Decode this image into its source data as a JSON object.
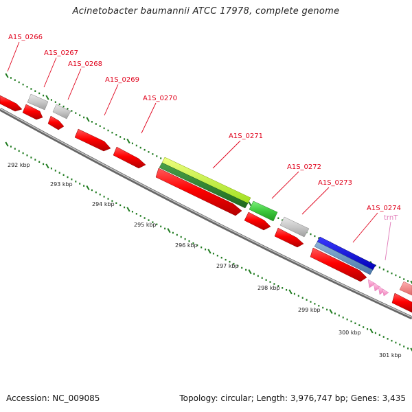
{
  "title": "Acinetobacter baumannii ATCC 17978, complete genome",
  "footer": {
    "accession": "Accession: NC_009085",
    "topology": "Topology: circular; Length: 3,976,747 bp; Genes: 3,435"
  },
  "colors": {
    "label": "#e0001a",
    "trna_label": "#e07ab8",
    "backbone": "#888888",
    "tick": "#1e7a1e"
  },
  "scale_ticks": [
    "292 kbp",
    "293 kbp",
    "294 kbp",
    "295 kbp",
    "296 kbp",
    "297 kbp",
    "298 kbp",
    "299 kbp",
    "300 kbp",
    "301 kbp"
  ],
  "features": [
    {
      "label": "A1S_0266",
      "color": "red"
    },
    {
      "label": "A1S_0267",
      "color": "grey"
    },
    {
      "label": "A1S_0268",
      "color": "grey"
    },
    {
      "label": "A1S_0269",
      "color": "red"
    },
    {
      "label": "A1S_0270",
      "color": "red"
    },
    {
      "label": "A1S_0271",
      "color": "lime"
    },
    {
      "label": "A1S_0272",
      "color": "green"
    },
    {
      "label": "A1S_0273",
      "color": "grey"
    },
    {
      "label": "A1S_0274",
      "color": "blue"
    },
    {
      "label": "trnT",
      "color": "pink"
    }
  ]
}
